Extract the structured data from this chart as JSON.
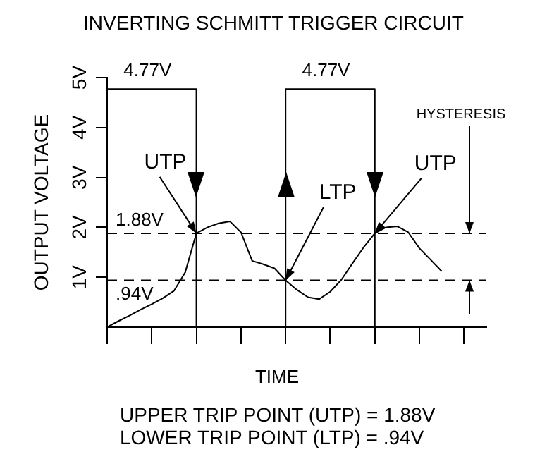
{
  "chart_data": {
    "type": "line",
    "title": "INVERTING SCHMITT TRIGGER CIRCUIT",
    "xlabel": "TIME",
    "ylabel": "OUTPUT VOLTAGE",
    "categories": [
      null,
      null,
      null,
      null,
      null,
      null,
      null,
      null,
      null,
      null,
      null,
      null,
      null,
      null,
      null,
      null,
      null,
      null,
      null,
      null,
      null,
      null,
      null,
      null,
      null,
      null,
      null,
      null,
      null,
      null,
      null,
      null,
      null,
      null,
      null
    ],
    "ylim": [
      0,
      5
    ],
    "yticks": [
      {
        "value": 1,
        "label": "1V"
      },
      {
        "value": 2,
        "label": "2V"
      },
      {
        "value": 3,
        "label": "3V"
      },
      {
        "value": 4,
        "label": "4V"
      },
      {
        "value": 5,
        "label": "5V"
      }
    ],
    "tick_labels": "y",
    "grid": false,
    "legend": false,
    "marker": "none",
    "line_style": "solid",
    "series": [
      {
        "type": "step",
        "color": "#000000",
        "values": [
          4.77,
          4.77,
          4.77,
          4.77,
          4.77,
          4.77,
          4.77,
          4.77,
          0,
          0,
          0,
          0,
          0,
          0,
          0,
          0,
          4.77,
          4.77,
          4.77,
          4.77,
          4.77,
          4.77,
          4.77,
          4.77,
          0,
          0,
          0,
          0,
          0,
          0,
          0,
          0,
          0,
          0,
          0
        ]
      },
      {
        "color": "#000000",
        "values": [
          0,
          0.12,
          0.23,
          0.35,
          0.46,
          0.58,
          0.73,
          1.1,
          1.88,
          2.0,
          2.08,
          2.12,
          1.9,
          1.33,
          1.26,
          1.18,
          0.94,
          0.75,
          0.6,
          0.56,
          0.71,
          0.95,
          1.28,
          1.6,
          1.88,
          2.0,
          2.02,
          1.9,
          1.58,
          1.35,
          1.12,
          null,
          null,
          null,
          null
        ]
      }
    ],
    "ref_lines": [
      {
        "axis": "y",
        "value": 1.88,
        "label": "1.88V",
        "line_style": "dashed",
        "color": "#000000"
      },
      {
        "axis": "y",
        "value": 0.94,
        "label": ".94V",
        "line_style": "dashed",
        "color": "#000000"
      }
    ],
    "annotations": [
      "4.77V",
      "4.77V",
      "UTP",
      "LTP",
      "UTP",
      "HYSTERESIS",
      "UPPER TRIP POINT (UTP) = 1.88V",
      "LOWER TRIP POINT (LTP) = .94V"
    ]
  }
}
